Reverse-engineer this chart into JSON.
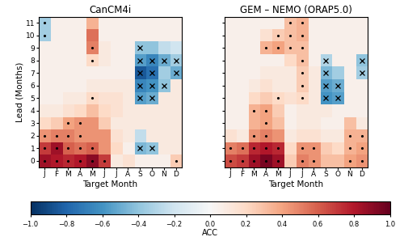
{
  "title1": "CanCM4i",
  "title2": "GEM – NEMO (ORAP5.0)",
  "months": [
    "J",
    "F",
    "M",
    "A",
    "M",
    "J",
    "J",
    "A",
    "S",
    "O",
    "N",
    "D"
  ],
  "leads": [
    0,
    1,
    2,
    3,
    4,
    5,
    6,
    7,
    8,
    9,
    10,
    11
  ],
  "xlabel": "Target Month",
  "ylabel": "Lead (Months)",
  "colorbar_label": "ACC",
  "vmin": -1.0,
  "vmax": 1.0,
  "data1": [
    [
      0.85,
      0.8,
      0.75,
      0.8,
      0.9,
      0.7,
      0.1,
      0.15,
      0.05,
      0.05,
      0.05,
      0.25
    ],
    [
      0.7,
      0.85,
      0.6,
      0.55,
      0.6,
      0.45,
      0.2,
      0.05,
      -0.45,
      -0.4,
      0.1,
      0.1
    ],
    [
      0.45,
      0.5,
      0.5,
      0.45,
      0.45,
      0.45,
      0.15,
      0.1,
      -0.25,
      0.1,
      0.1,
      0.1
    ],
    [
      0.2,
      0.25,
      0.4,
      0.45,
      0.45,
      0.25,
      0.1,
      0.1,
      0.1,
      0.1,
      0.1,
      0.1
    ],
    [
      0.1,
      0.1,
      0.15,
      0.2,
      0.3,
      0.2,
      0.15,
      0.1,
      0.1,
      0.1,
      0.1,
      0.1
    ],
    [
      0.05,
      0.05,
      0.1,
      0.1,
      0.2,
      0.15,
      0.15,
      0.1,
      -0.55,
      -0.5,
      0.1,
      0.1
    ],
    [
      0.05,
      0.05,
      0.05,
      0.05,
      0.1,
      0.1,
      0.1,
      0.1,
      -0.65,
      -0.6,
      -0.4,
      0.1
    ],
    [
      0.05,
      0.05,
      0.05,
      0.05,
      0.05,
      0.05,
      0.05,
      0.05,
      -0.85,
      -0.75,
      -0.35,
      -0.5
    ],
    [
      0.05,
      0.05,
      0.05,
      0.05,
      0.2,
      0.1,
      0.05,
      0.05,
      -0.55,
      -0.65,
      -0.5,
      -0.35
    ],
    [
      0.05,
      0.05,
      0.05,
      0.05,
      0.5,
      0.1,
      0.05,
      0.05,
      -0.4,
      -0.4,
      -0.25,
      -0.2
    ],
    [
      -0.35,
      0.05,
      0.05,
      0.05,
      0.55,
      0.05,
      0.05,
      0.05,
      0.05,
      0.05,
      0.05,
      0.05
    ],
    [
      -0.35,
      0.05,
      0.05,
      0.05,
      0.35,
      0.05,
      0.05,
      0.05,
      0.05,
      0.05,
      0.05,
      0.05
    ]
  ],
  "data2": [
    [
      0.65,
      0.7,
      0.85,
      0.95,
      0.85,
      0.25,
      0.5,
      0.45,
      0.3,
      0.3,
      0.4,
      0.45
    ],
    [
      0.5,
      0.55,
      0.75,
      0.8,
      0.75,
      0.2,
      0.45,
      0.45,
      0.25,
      0.2,
      0.35,
      0.4
    ],
    [
      0.15,
      0.1,
      0.45,
      0.5,
      0.45,
      0.1,
      0.15,
      0.15,
      0.1,
      0.1,
      0.35,
      0.35
    ],
    [
      0.05,
      0.05,
      0.35,
      0.4,
      0.3,
      0.05,
      0.1,
      0.1,
      0.05,
      0.05,
      0.3,
      0.1
    ],
    [
      0.05,
      0.05,
      0.35,
      0.4,
      0.25,
      0.05,
      0.1,
      0.1,
      0.1,
      0.05,
      0.05,
      0.05
    ],
    [
      0.05,
      0.05,
      0.2,
      0.25,
      0.2,
      0.15,
      0.2,
      0.1,
      -0.6,
      -0.55,
      0.05,
      0.05
    ],
    [
      0.05,
      0.05,
      0.1,
      0.15,
      0.1,
      0.1,
      0.25,
      0.1,
      -0.55,
      -0.5,
      0.05,
      0.05
    ],
    [
      0.05,
      0.05,
      0.05,
      0.1,
      0.1,
      0.1,
      0.25,
      0.1,
      -0.45,
      -0.35,
      0.05,
      -0.35
    ],
    [
      0.05,
      0.05,
      0.05,
      0.05,
      0.05,
      0.2,
      0.3,
      0.05,
      -0.3,
      0.05,
      0.05,
      -0.4
    ],
    [
      0.05,
      0.05,
      0.05,
      0.35,
      0.4,
      0.3,
      0.3,
      0.05,
      0.05,
      0.05,
      0.05,
      0.05
    ],
    [
      0.05,
      0.05,
      0.05,
      0.15,
      0.25,
      0.3,
      0.35,
      0.05,
      0.05,
      0.05,
      0.05,
      0.05
    ],
    [
      0.05,
      0.05,
      0.05,
      0.05,
      0.05,
      0.3,
      0.35,
      0.05,
      0.05,
      0.05,
      0.05,
      0.05
    ]
  ],
  "dots1": [
    [
      true,
      true,
      true,
      true,
      true,
      true,
      false,
      false,
      false,
      false,
      false,
      true
    ],
    [
      true,
      true,
      true,
      true,
      true,
      false,
      false,
      false,
      false,
      false,
      false,
      false
    ],
    [
      true,
      true,
      true,
      true,
      false,
      false,
      false,
      false,
      false,
      false,
      false,
      false
    ],
    [
      false,
      false,
      true,
      true,
      false,
      false,
      false,
      false,
      false,
      false,
      false,
      false
    ],
    [
      false,
      false,
      false,
      false,
      false,
      false,
      false,
      false,
      false,
      false,
      false,
      false
    ],
    [
      false,
      false,
      false,
      false,
      true,
      false,
      false,
      false,
      false,
      false,
      false,
      false
    ],
    [
      false,
      false,
      false,
      false,
      false,
      false,
      false,
      false,
      false,
      false,
      false,
      false
    ],
    [
      false,
      false,
      false,
      false,
      false,
      false,
      false,
      false,
      false,
      false,
      false,
      false
    ],
    [
      false,
      false,
      false,
      false,
      true,
      false,
      false,
      false,
      false,
      false,
      false,
      false
    ],
    [
      false,
      false,
      false,
      false,
      true,
      false,
      false,
      false,
      false,
      false,
      false,
      false
    ],
    [
      true,
      false,
      false,
      false,
      false,
      false,
      false,
      false,
      false,
      false,
      false,
      false
    ],
    [
      true,
      false,
      false,
      false,
      false,
      false,
      false,
      false,
      false,
      false,
      false,
      false
    ]
  ],
  "crosses1": [
    [
      false,
      false,
      false,
      false,
      false,
      false,
      false,
      false,
      false,
      false,
      false,
      false
    ],
    [
      false,
      false,
      false,
      false,
      false,
      false,
      false,
      false,
      true,
      true,
      false,
      false
    ],
    [
      false,
      false,
      false,
      false,
      false,
      false,
      false,
      false,
      false,
      false,
      false,
      false
    ],
    [
      false,
      false,
      false,
      false,
      false,
      false,
      false,
      false,
      false,
      false,
      false,
      false
    ],
    [
      false,
      false,
      false,
      false,
      false,
      false,
      false,
      false,
      false,
      false,
      false,
      false
    ],
    [
      false,
      false,
      false,
      false,
      false,
      false,
      false,
      false,
      true,
      true,
      false,
      false
    ],
    [
      false,
      false,
      false,
      false,
      false,
      false,
      false,
      false,
      true,
      true,
      true,
      false
    ],
    [
      false,
      false,
      false,
      false,
      false,
      false,
      false,
      false,
      true,
      true,
      false,
      true
    ],
    [
      false,
      false,
      false,
      false,
      false,
      false,
      false,
      false,
      true,
      true,
      true,
      true
    ],
    [
      false,
      false,
      false,
      false,
      false,
      false,
      false,
      false,
      true,
      false,
      false,
      false
    ],
    [
      false,
      false,
      false,
      false,
      false,
      false,
      false,
      false,
      false,
      false,
      false,
      false
    ],
    [
      false,
      false,
      false,
      false,
      false,
      false,
      false,
      false,
      false,
      false,
      false,
      false
    ]
  ],
  "dots2": [
    [
      true,
      true,
      true,
      true,
      true,
      false,
      true,
      true,
      false,
      false,
      true,
      true
    ],
    [
      true,
      true,
      true,
      true,
      true,
      false,
      true,
      true,
      false,
      false,
      true,
      true
    ],
    [
      false,
      false,
      true,
      true,
      false,
      false,
      false,
      false,
      false,
      false,
      true,
      true
    ],
    [
      false,
      false,
      false,
      true,
      false,
      false,
      false,
      false,
      false,
      false,
      false,
      false
    ],
    [
      false,
      false,
      true,
      true,
      false,
      false,
      false,
      false,
      false,
      false,
      false,
      false
    ],
    [
      false,
      false,
      false,
      false,
      true,
      false,
      true,
      false,
      false,
      false,
      false,
      false
    ],
    [
      false,
      false,
      false,
      false,
      false,
      false,
      true,
      false,
      false,
      false,
      false,
      false
    ],
    [
      false,
      false,
      false,
      false,
      false,
      false,
      true,
      false,
      false,
      false,
      false,
      false
    ],
    [
      false,
      false,
      false,
      false,
      false,
      false,
      true,
      false,
      false,
      false,
      false,
      false
    ],
    [
      false,
      false,
      false,
      true,
      true,
      true,
      true,
      false,
      false,
      false,
      false,
      false
    ],
    [
      false,
      false,
      false,
      false,
      true,
      true,
      true,
      false,
      false,
      false,
      false,
      false
    ],
    [
      false,
      false,
      false,
      false,
      false,
      true,
      true,
      false,
      false,
      false,
      false,
      false
    ]
  ],
  "crosses2": [
    [
      false,
      false,
      false,
      false,
      false,
      false,
      false,
      false,
      false,
      false,
      false,
      false
    ],
    [
      false,
      false,
      false,
      false,
      false,
      false,
      false,
      false,
      false,
      false,
      false,
      false
    ],
    [
      false,
      false,
      false,
      false,
      false,
      false,
      false,
      false,
      false,
      false,
      false,
      false
    ],
    [
      false,
      false,
      false,
      false,
      false,
      false,
      false,
      false,
      false,
      false,
      false,
      false
    ],
    [
      false,
      false,
      false,
      false,
      false,
      false,
      false,
      false,
      false,
      false,
      false,
      false
    ],
    [
      false,
      false,
      false,
      false,
      false,
      false,
      false,
      false,
      true,
      true,
      false,
      false
    ],
    [
      false,
      false,
      false,
      false,
      false,
      false,
      false,
      false,
      true,
      true,
      false,
      false
    ],
    [
      false,
      false,
      false,
      false,
      false,
      false,
      false,
      false,
      true,
      false,
      false,
      true
    ],
    [
      false,
      false,
      false,
      false,
      false,
      false,
      false,
      false,
      true,
      false,
      false,
      true
    ],
    [
      false,
      false,
      false,
      false,
      false,
      false,
      false,
      false,
      false,
      false,
      false,
      false
    ],
    [
      false,
      false,
      false,
      false,
      false,
      false,
      false,
      false,
      false,
      false,
      false,
      false
    ],
    [
      false,
      false,
      false,
      false,
      false,
      false,
      false,
      false,
      false,
      false,
      false,
      false
    ]
  ]
}
